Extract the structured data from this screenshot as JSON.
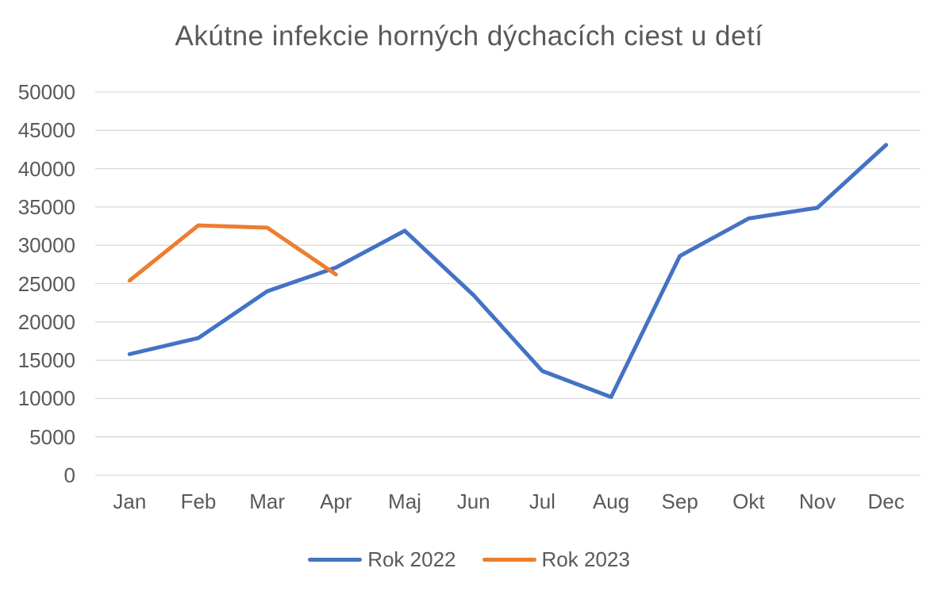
{
  "chart_data": {
    "type": "line",
    "title": "Akútne infekcie horných dýchacích ciest u detí",
    "categories": [
      "Jan",
      "Feb",
      "Mar",
      "Apr",
      "Maj",
      "Jun",
      "Jul",
      "Aug",
      "Sep",
      "Okt",
      "Nov",
      "Dec"
    ],
    "series": [
      {
        "name": "Rok 2022",
        "color": "#4472C4",
        "values": [
          15800,
          17900,
          24000,
          27100,
          31900,
          23500,
          13600,
          10200,
          28600,
          33500,
          34900,
          43100
        ]
      },
      {
        "name": "Rok 2023",
        "color": "#ED7D31",
        "values": [
          25400,
          32600,
          32300,
          26200
        ]
      }
    ],
    "xlabel": "",
    "ylabel": "",
    "ylim": [
      0,
      50000
    ],
    "ytick_step": 5000,
    "ytick_labels": [
      "0",
      "5000",
      "10000",
      "15000",
      "20000",
      "25000",
      "30000",
      "35000",
      "40000",
      "45000",
      "50000"
    ],
    "grid": "horizontal",
    "legend_position": "bottom",
    "colors": {
      "title_text": "#595959",
      "axis_text": "#595959",
      "gridline": "#D9D9D9"
    }
  }
}
